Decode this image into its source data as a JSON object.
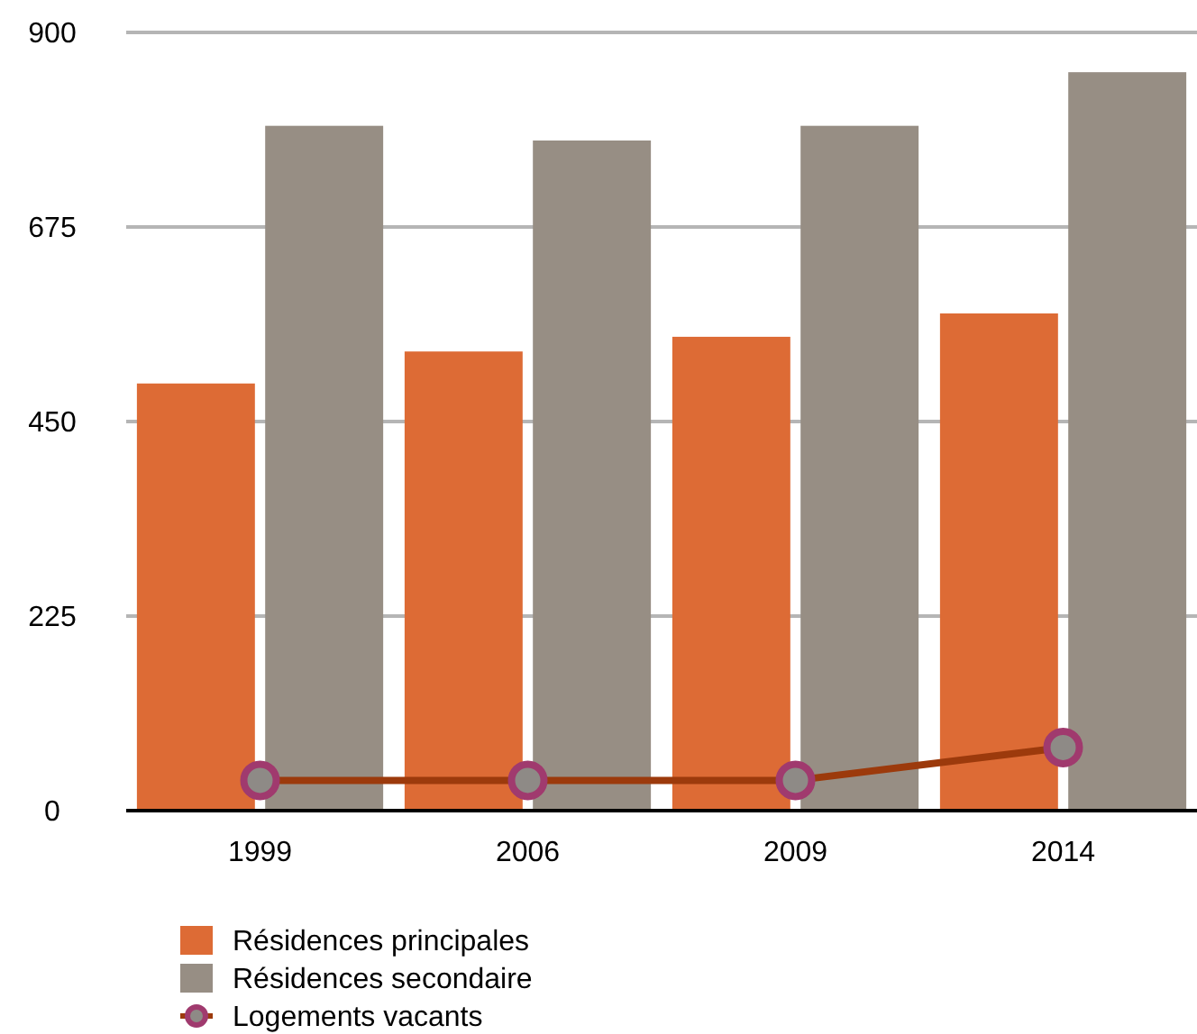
{
  "chart_data": {
    "type": "bar",
    "categories": [
      "1999",
      "2006",
      "2009",
      "2014"
    ],
    "series": [
      {
        "name": "Résidences principales",
        "color": "#dd6b35",
        "values": [
          494,
          531,
          548,
          575
        ]
      },
      {
        "name": "Résidences secondaire",
        "color": "#978e84",
        "values": [
          792,
          775,
          792,
          854
        ]
      },
      {
        "name": "Logements vacants",
        "type": "line",
        "color": "#9c3a0c",
        "values": [
          35,
          35,
          35,
          73
        ]
      }
    ],
    "ylim": [
      0,
      900
    ],
    "yticks": [
      0,
      225,
      450,
      675,
      900
    ],
    "grid": "y",
    "legend": "bottom left",
    "marker": "circle"
  }
}
